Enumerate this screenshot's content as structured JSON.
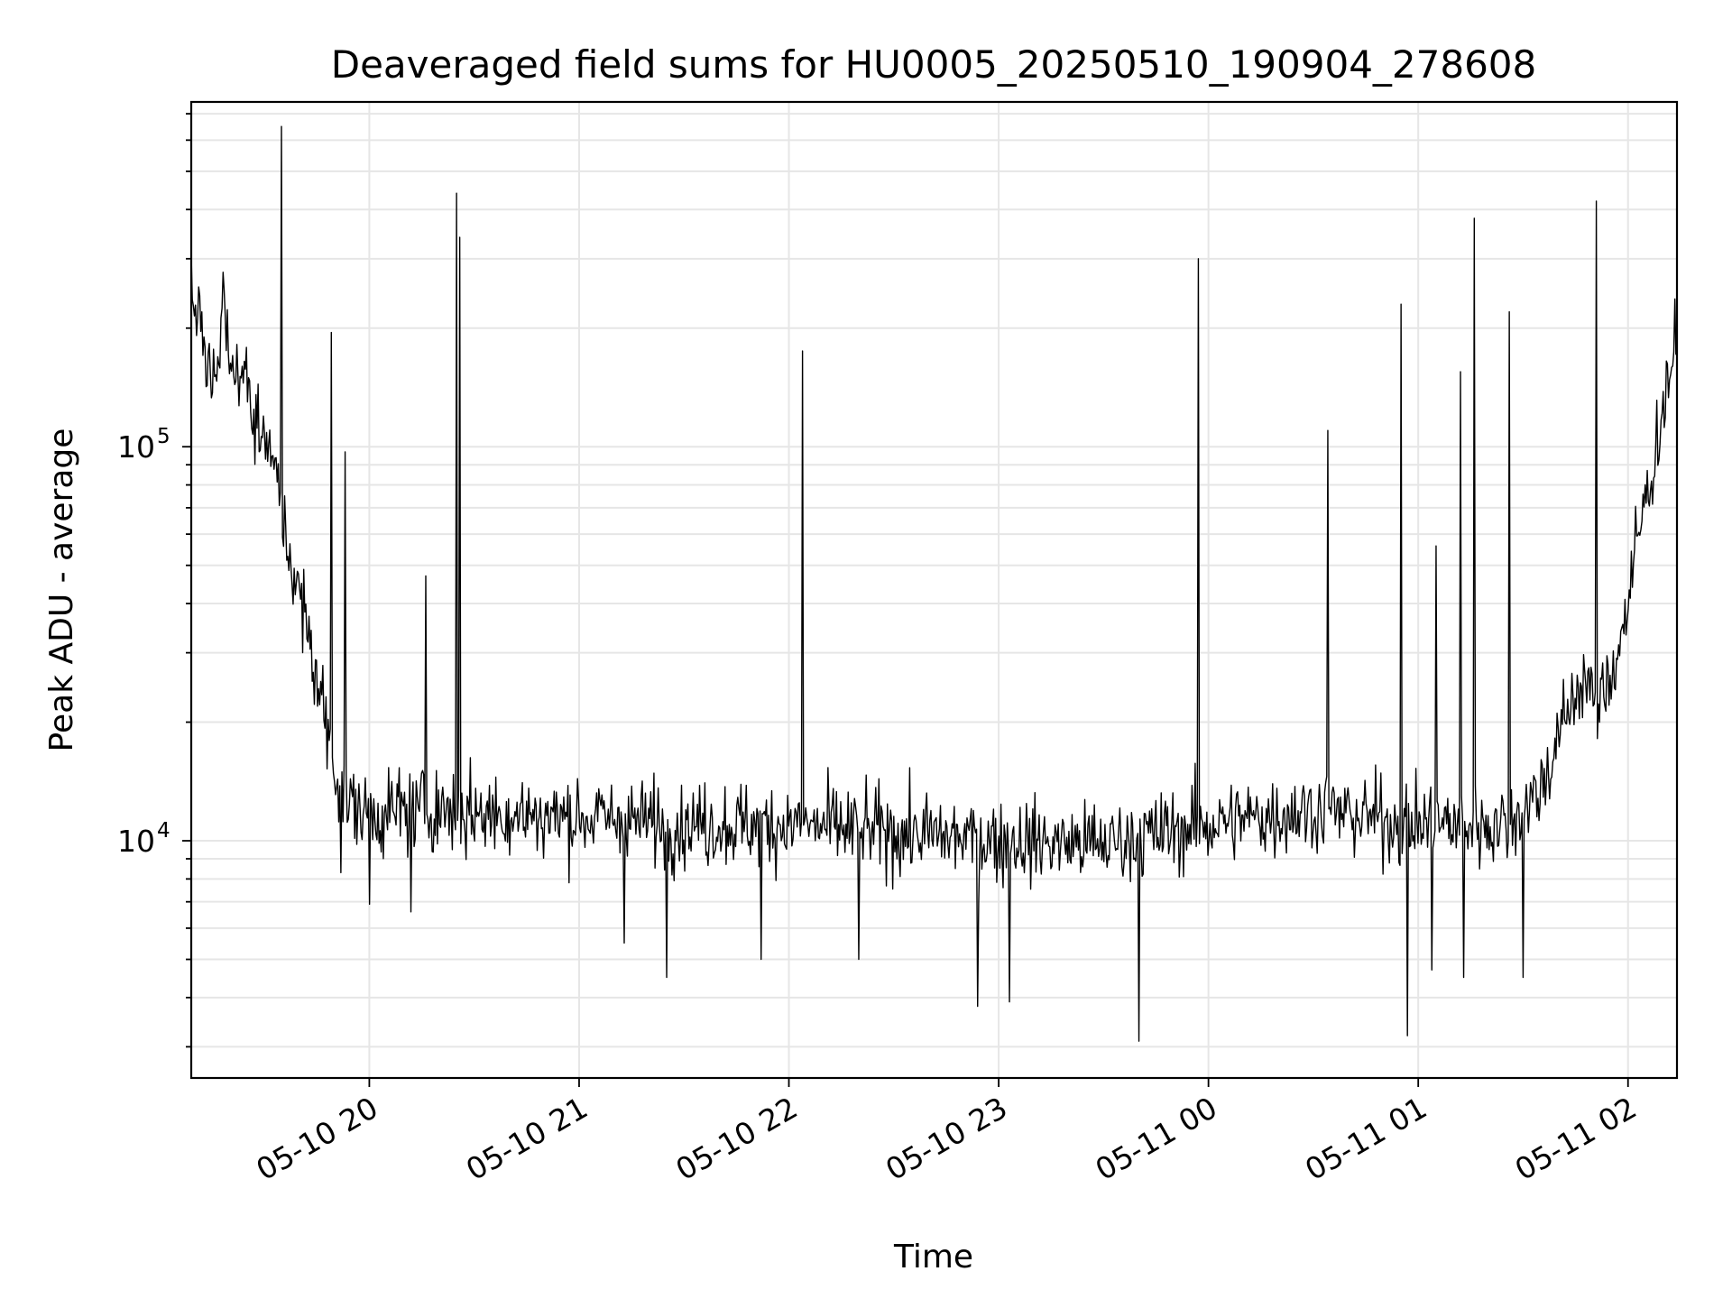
{
  "chart_data": {
    "type": "line",
    "title": "Deaveraged field sums for HU0005_20250510_190904_278608",
    "xlabel": "Time",
    "ylabel": "Peak ADU - average",
    "yscale": "log",
    "ylim": [
      2500,
      750000
    ],
    "xlim": [
      "2025-05-10 19:09:04",
      "2025-05-11 02:14:00"
    ],
    "grid": true,
    "x_ticks": [
      "2025-05-10 20:00",
      "2025-05-10 21:00",
      "2025-05-10 22:00",
      "2025-05-10 23:00",
      "2025-05-11 00:00",
      "2025-05-11 01:00",
      "2025-05-11 02:00"
    ],
    "x_tick_labels": [
      "05-10 20",
      "05-10 21",
      "05-10 22",
      "05-10 23",
      "05-11 00",
      "05-11 01",
      "05-11 02"
    ],
    "y_ticks": [
      {
        "value": 10000,
        "base": "10",
        "exp": "4"
      },
      {
        "value": 100000,
        "base": "10",
        "exp": "5"
      }
    ],
    "series": [
      {
        "color": "#000000",
        "points": [
          [
            "2025-05-10 19:09",
            230000
          ],
          [
            "2025-05-10 19:12",
            200000
          ],
          [
            "2025-05-10 19:15",
            140000
          ],
          [
            "2025-05-10 19:18",
            230000
          ],
          [
            "2025-05-10 19:21",
            160000
          ],
          [
            "2025-05-10 19:24",
            150000
          ],
          [
            "2025-05-10 19:27",
            120000
          ],
          [
            "2025-05-10 19:30",
            110000
          ],
          [
            "2025-05-10 19:33",
            85000
          ],
          [
            "2025-05-10 19:36",
            60000
          ],
          [
            "2025-05-10 19:39",
            45000
          ],
          [
            "2025-05-10 19:42",
            35000
          ],
          [
            "2025-05-10 19:45",
            26000
          ],
          [
            "2025-05-10 19:48",
            19000
          ],
          [
            "2025-05-10 19:51",
            14500
          ],
          [
            "2025-05-10 19:54",
            12500
          ],
          [
            "2025-05-10 19:57",
            12000
          ],
          [
            "2025-05-10 20:00",
            11500
          ],
          [
            "2025-05-10 20:10",
            12000
          ],
          [
            "2025-05-10 20:20",
            12000
          ],
          [
            "2025-05-10 20:30",
            11800
          ],
          [
            "2025-05-10 20:45",
            11600
          ],
          [
            "2025-05-10 21:00",
            11500
          ],
          [
            "2025-05-10 21:30",
            11000
          ],
          [
            "2025-05-10 22:00",
            11000
          ],
          [
            "2025-05-10 22:30",
            10500
          ],
          [
            "2025-05-10 23:00",
            10000
          ],
          [
            "2025-05-10 23:30",
            9800
          ],
          [
            "2025-05-11 00:00",
            11000
          ],
          [
            "2025-05-11 00:30",
            12000
          ],
          [
            "2025-05-11 01:00",
            11000
          ],
          [
            "2025-05-11 01:15",
            11000
          ],
          [
            "2025-05-11 01:25",
            11000
          ],
          [
            "2025-05-11 01:35",
            13500
          ],
          [
            "2025-05-11 01:40",
            18000
          ],
          [
            "2025-05-11 01:45",
            24000
          ],
          [
            "2025-05-11 01:48",
            26000
          ],
          [
            "2025-05-11 01:51",
            21000
          ],
          [
            "2025-05-11 01:54",
            25000
          ],
          [
            "2025-05-11 01:57",
            30000
          ],
          [
            "2025-05-11 02:00",
            40000
          ],
          [
            "2025-05-11 02:03",
            60000
          ],
          [
            "2025-05-11 02:06",
            80000
          ],
          [
            "2025-05-11 02:09",
            110000
          ],
          [
            "2025-05-11 02:12",
            160000
          ],
          [
            "2025-05-11 02:14",
            180000
          ]
        ],
        "spikes": [
          [
            "2025-05-10 19:35",
            650000
          ],
          [
            "2025-05-10 19:49",
            195000
          ],
          [
            "2025-05-10 19:53",
            97000
          ],
          [
            "2025-05-10 20:16",
            47000
          ],
          [
            "2025-05-10 20:25",
            440000
          ],
          [
            "2025-05-10 20:26",
            340000
          ],
          [
            "2025-05-10 22:04",
            175000
          ],
          [
            "2025-05-10 23:57",
            300000
          ],
          [
            "2025-05-11 00:34",
            110000
          ],
          [
            "2025-05-11 00:55",
            230000
          ],
          [
            "2025-05-11 01:05",
            56000
          ],
          [
            "2025-05-11 01:12",
            155000
          ],
          [
            "2025-05-11 01:16",
            380000
          ],
          [
            "2025-05-11 01:26",
            220000
          ],
          [
            "2025-05-11 01:51",
            420000
          ]
        ],
        "dips": [
          [
            "2025-05-10 19:52",
            8300
          ],
          [
            "2025-05-10 20:00",
            6900
          ],
          [
            "2025-05-10 20:12",
            6600
          ],
          [
            "2025-05-10 21:13",
            5500
          ],
          [
            "2025-05-10 21:25",
            4500
          ],
          [
            "2025-05-10 21:52",
            5000
          ],
          [
            "2025-05-10 22:20",
            5000
          ],
          [
            "2025-05-10 22:54",
            3800
          ],
          [
            "2025-05-10 23:03",
            3900
          ],
          [
            "2025-05-10 23:40",
            3100
          ],
          [
            "2025-05-11 00:57",
            3200
          ],
          [
            "2025-05-11 01:04",
            4700
          ],
          [
            "2025-05-11 01:13",
            4500
          ],
          [
            "2025-05-11 01:30",
            4500
          ]
        ]
      }
    ]
  }
}
